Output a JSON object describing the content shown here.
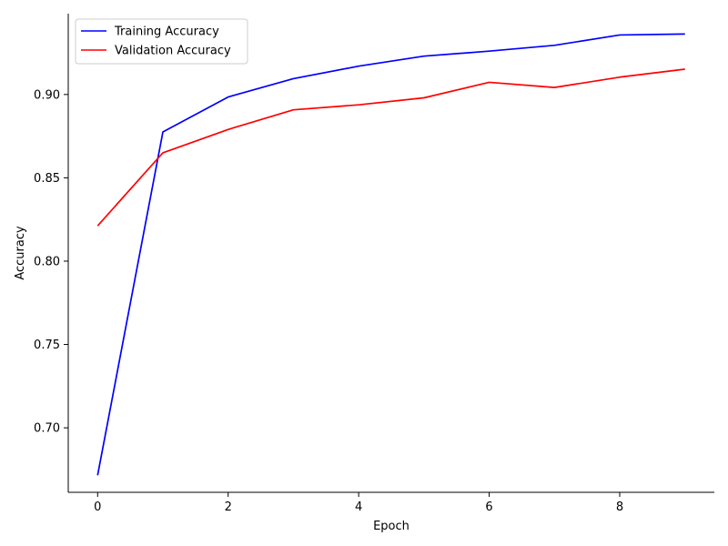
{
  "chart_data": {
    "type": "line",
    "title": "",
    "xlabel": "Epoch",
    "ylabel": "Accuracy",
    "x": [
      0,
      1,
      2,
      3,
      4,
      5,
      6,
      7,
      8,
      9
    ],
    "xlim": [
      -0.45,
      9.45
    ],
    "ylim": [
      0.6613,
      0.9485
    ],
    "xticks": [
      0,
      2,
      4,
      6,
      8
    ],
    "yticks": [
      0.7,
      0.75,
      0.8,
      0.85,
      0.9
    ],
    "xtick_labels": [
      "0",
      "2",
      "4",
      "6",
      "8"
    ],
    "ytick_labels": [
      "0.70",
      "0.75",
      "0.80",
      "0.85",
      "0.90"
    ],
    "grid": false,
    "legend_position": "top-left",
    "series": [
      {
        "name": "Training Accuracy",
        "color": "#0000ff",
        "values": [
          0.6715,
          0.8775,
          0.8985,
          0.9095,
          0.917,
          0.923,
          0.926,
          0.9295,
          0.9357,
          0.9363
        ]
      },
      {
        "name": "Validation Accuracy",
        "color": "#ff0000",
        "values": [
          0.8212,
          0.865,
          0.879,
          0.8908,
          0.8938,
          0.898,
          0.9073,
          0.9042,
          0.9104,
          0.9152
        ]
      }
    ]
  }
}
